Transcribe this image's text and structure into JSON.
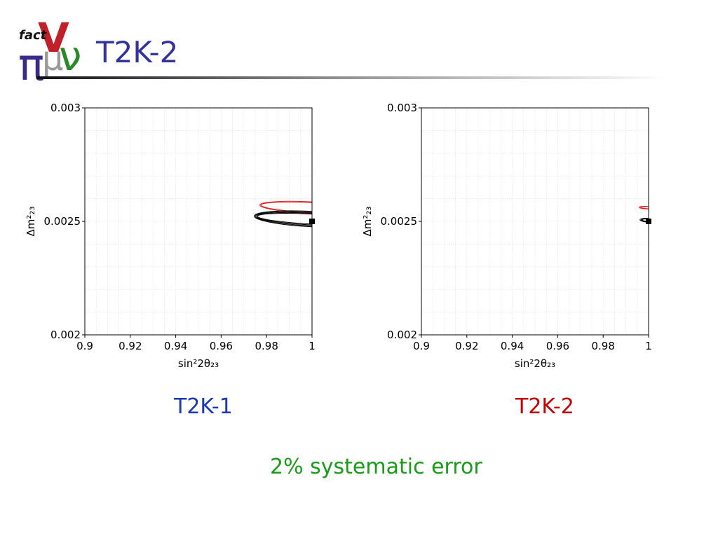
{
  "slide": {
    "title": "T2K-2",
    "logo": {
      "text_top": "fact",
      "glyphs": [
        "V",
        "π",
        "μ",
        "ν"
      ]
    },
    "footnote": "2% systematic error"
  },
  "colors": {
    "title": "#33339a",
    "caption_left": "#1a3ab4",
    "caption_right": "#c00000",
    "footnote": "#1b9a1b",
    "contour_red": "#e02020",
    "contour_black": "#000000"
  },
  "panels": [
    {
      "caption": "T2K-1",
      "caption_color_key": "caption_left"
    },
    {
      "caption": "T2K-2",
      "caption_color_key": "caption_right"
    }
  ],
  "chart_data": [
    {
      "type": "line",
      "title": "",
      "xlabel": "sin²2θ₂₃",
      "ylabel": "Δm²₂₃",
      "xlim": [
        0.9,
        1.0
      ],
      "ylim": [
        0.002,
        0.003
      ],
      "x_ticks": [
        "0.9",
        "0.92",
        "0.94",
        "0.96",
        "0.98",
        "1"
      ],
      "x_tick_values": [
        0.9,
        0.92,
        0.94,
        0.96,
        0.98,
        1.0
      ],
      "y_ticks": [
        "0.002",
        "0.0025",
        "0.003"
      ],
      "y_tick_values": [
        0.002,
        0.0025,
        0.003
      ],
      "grid": true,
      "true_value": {
        "x": 1.0,
        "y": 0.0025
      },
      "contours": [
        {
          "color": "red",
          "center_x": 1.0,
          "center_y": 0.00256,
          "half_width": [
            0.0225,
            0.023
          ],
          "half_height": [
            2.2e-05,
            2.6e-05
          ]
        },
        {
          "color": "black",
          "center_x": 1.0,
          "center_y": 0.00251,
          "half_width": [
            0.024,
            0.0245,
            0.025,
            0.0255
          ],
          "half_height": [
            2.2e-05,
            2.6e-05,
            3e-05,
            3.4e-05
          ]
        }
      ]
    },
    {
      "type": "line",
      "title": "",
      "xlabel": "sin²2θ₂₃",
      "ylabel": "Δm²₂₃",
      "xlim": [
        0.9,
        1.0
      ],
      "ylim": [
        0.002,
        0.003
      ],
      "x_ticks": [
        "0.9",
        "0.92",
        "0.94",
        "0.96",
        "0.98",
        "1"
      ],
      "x_tick_values": [
        0.9,
        0.92,
        0.94,
        0.96,
        0.98,
        1.0
      ],
      "y_ticks": [
        "0.002",
        "0.0025",
        "0.003"
      ],
      "y_tick_values": [
        0.002,
        0.0025,
        0.003
      ],
      "grid": true,
      "true_value": {
        "x": 1.0,
        "y": 0.0025
      },
      "contours": [
        {
          "color": "red",
          "center_x": 1.0,
          "center_y": 0.00256,
          "half_width": [
            0.0035,
            0.0042
          ],
          "half_height": [
            4.5e-06,
            6e-06
          ]
        },
        {
          "color": "black",
          "center_x": 1.0,
          "center_y": 0.002505,
          "half_width": [
            0.0028,
            0.0033,
            0.0038
          ],
          "half_height": [
            5.5e-06,
            7e-06,
            8.5e-06
          ]
        }
      ]
    }
  ]
}
